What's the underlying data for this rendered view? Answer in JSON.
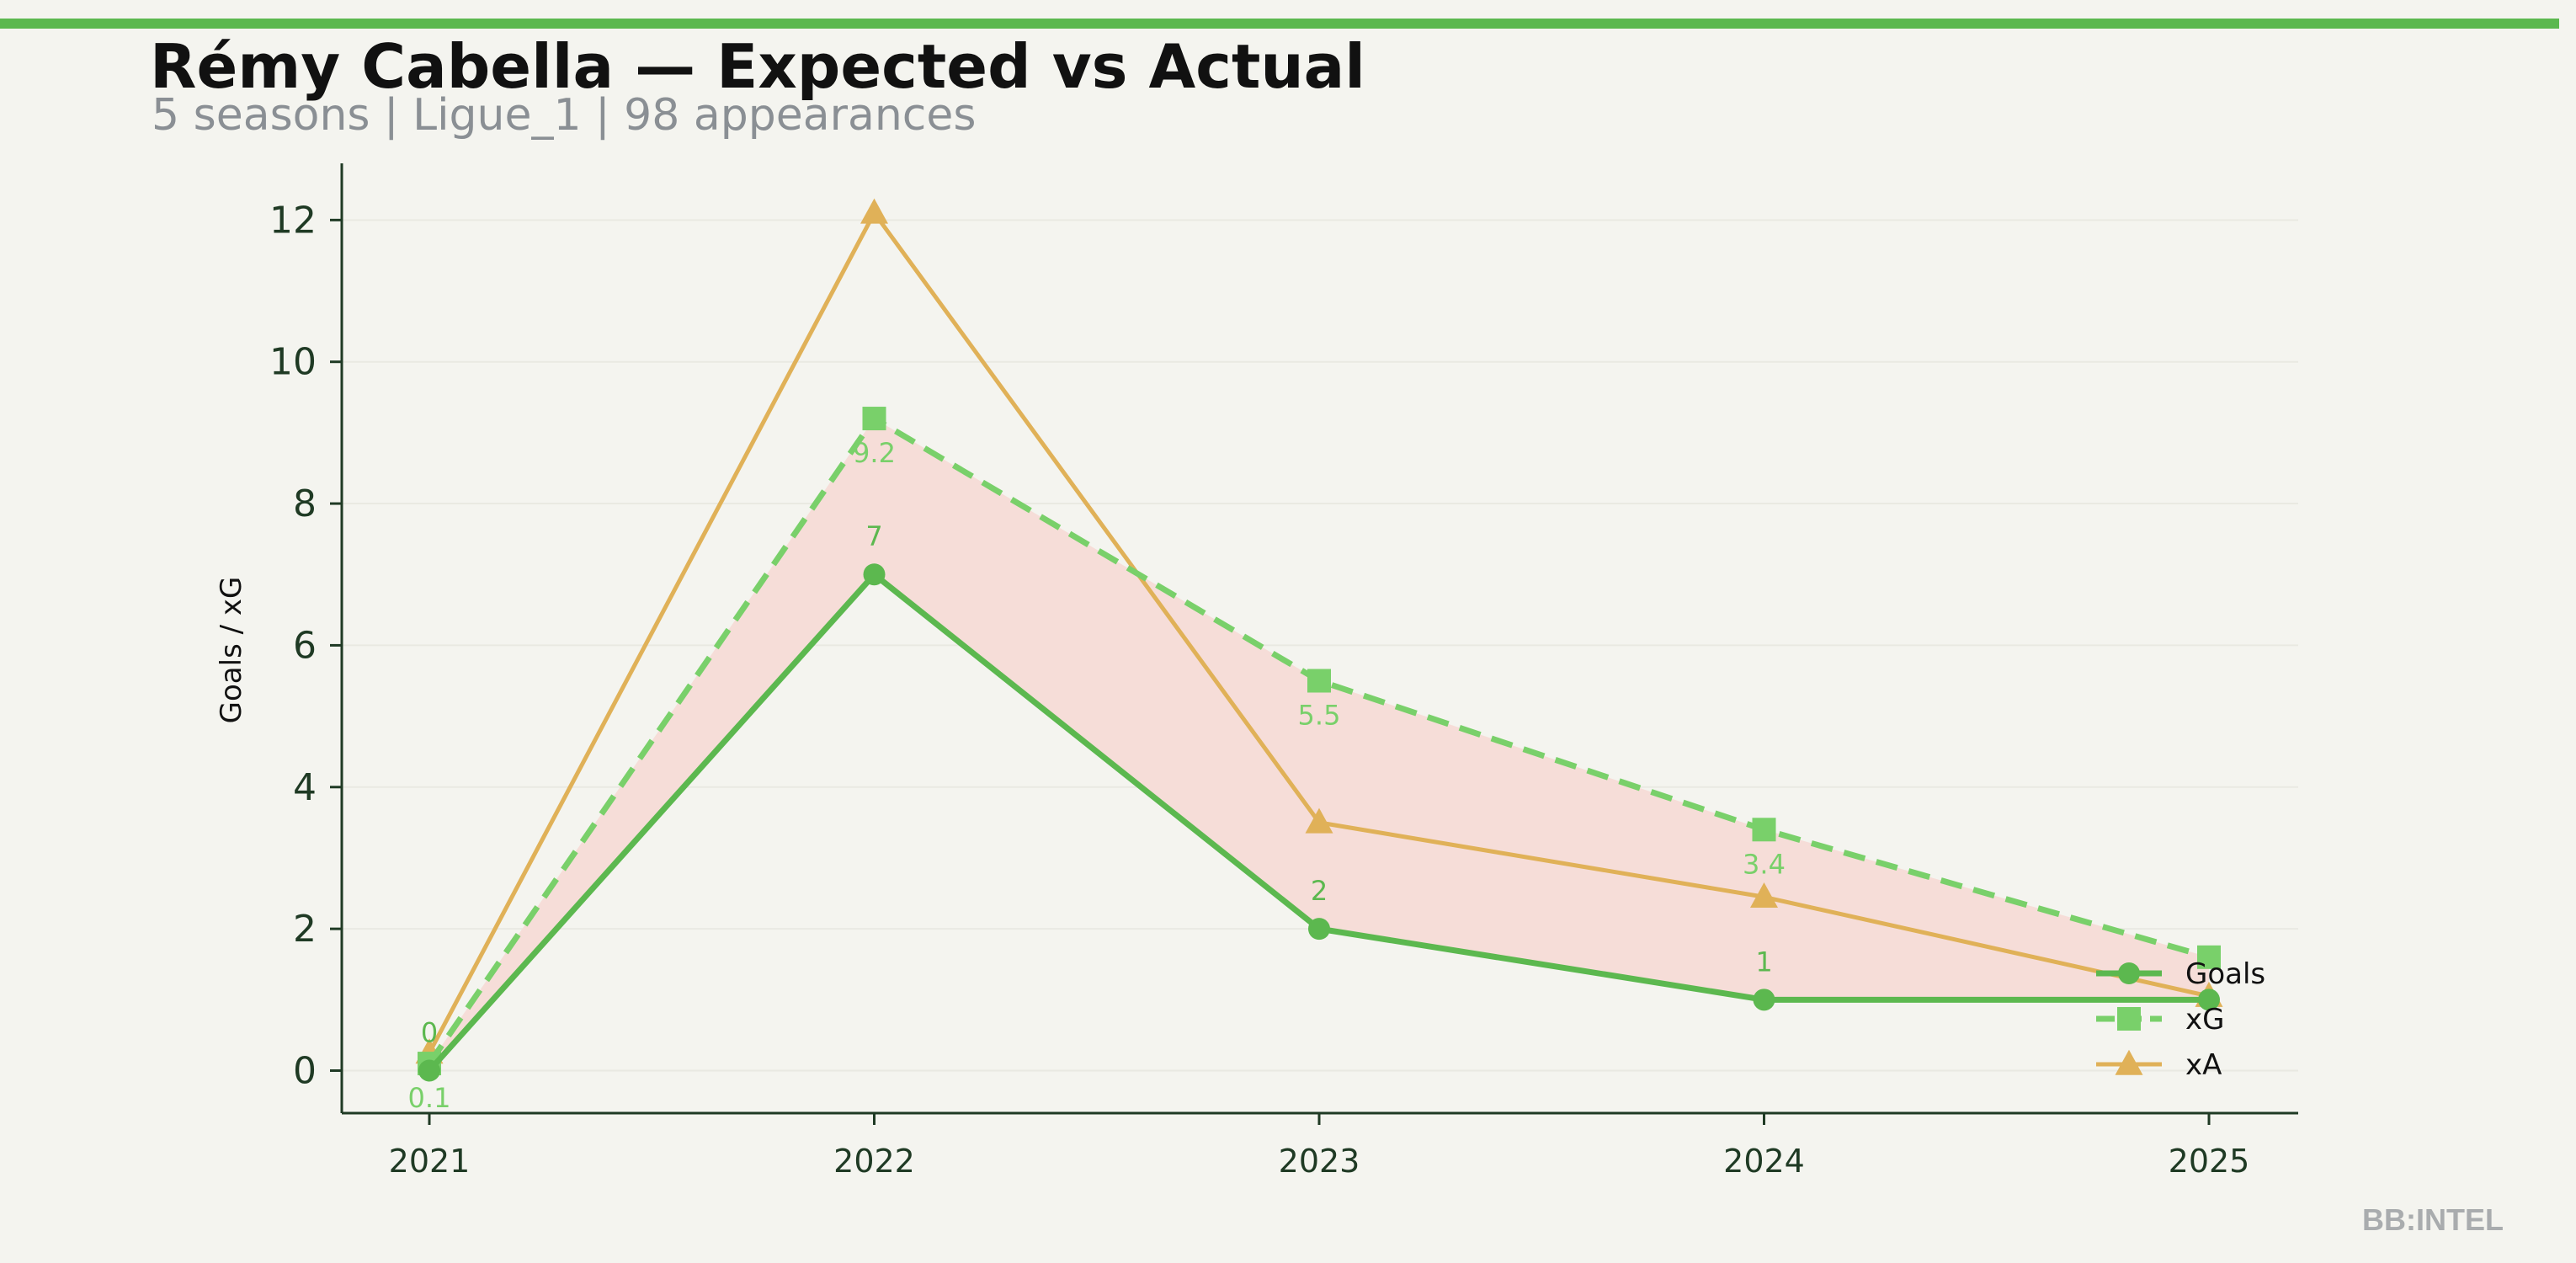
{
  "header": {
    "title": "Rémy Cabella — Expected vs Actual",
    "subtitle": "5 seasons | Ligue_1 | 98 appearances"
  },
  "watermark": "BB:INTEL",
  "colors": {
    "background": "#f4f4ef",
    "accent": "#5cb84f",
    "goals": "#5cb84f",
    "xg": "#79d06a",
    "xa": "#e0b158",
    "gap_fill": "#f6ddd8",
    "axis": "#1f3a24"
  },
  "chart_data": {
    "type": "line",
    "x": [
      "2021",
      "2022",
      "2023",
      "2024",
      "2025"
    ],
    "xlabel": "",
    "ylabel": "Goals / xG",
    "ylim": [
      -0.6,
      12.8
    ],
    "yticks": [
      0,
      2,
      4,
      6,
      8,
      10,
      12
    ],
    "grid": true,
    "legend": "bottom-right",
    "shaded_region": "between Goals and xG",
    "series": [
      {
        "name": "Goals",
        "values": [
          0,
          7,
          2,
          1,
          1
        ],
        "marker": "circle",
        "style": "solid",
        "labels": [
          "0",
          "7",
          "2",
          "1",
          ""
        ]
      },
      {
        "name": "xG",
        "values": [
          0.1,
          9.2,
          5.5,
          3.4,
          1.6
        ],
        "marker": "square",
        "style": "dashed",
        "labels": [
          "0.1",
          "9.2",
          "5.5",
          "3.4",
          ""
        ]
      },
      {
        "name": "xA",
        "values": [
          0.25,
          12.1,
          3.5,
          2.45,
          1.05
        ],
        "marker": "triangle",
        "style": "solid"
      }
    ]
  }
}
